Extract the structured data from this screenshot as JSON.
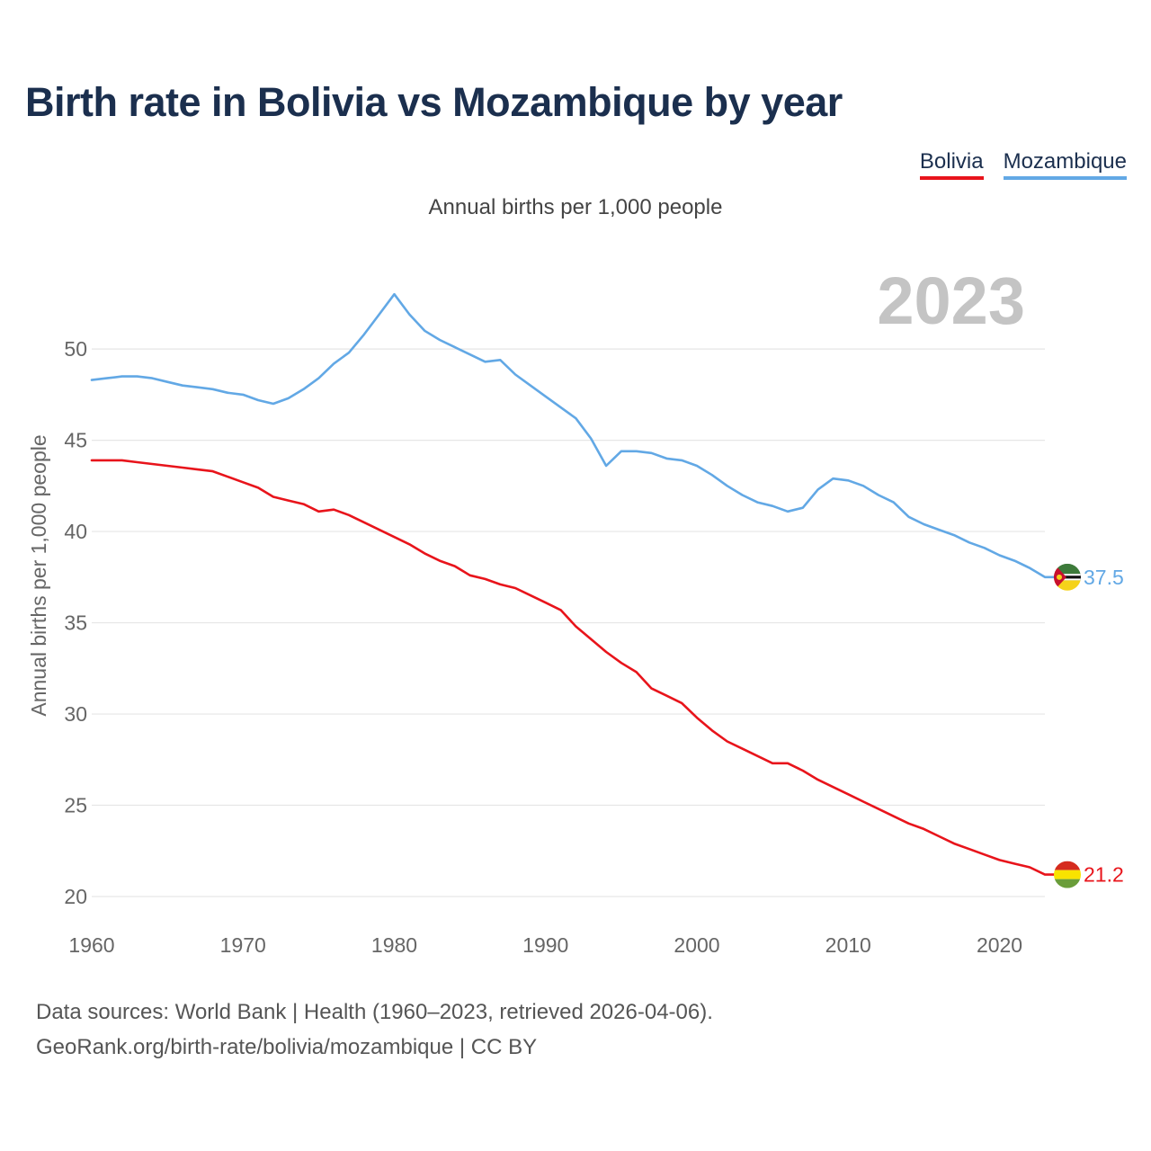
{
  "title": "Birth rate in Bolivia vs Mozambique by year",
  "legend": {
    "bolivia": "Bolivia",
    "mozambique": "Mozambique"
  },
  "subtitle": "Annual births per 1,000 people",
  "year_watermark": "2023",
  "footer": {
    "line1": "Data sources: World Bank | Health (1960–2023, retrieved 2026-04-06).",
    "line2": "GeoRank.org/birth-rate/bolivia/mozambique | CC BY"
  },
  "colors": {
    "bolivia": "#e8141b",
    "mozambique": "#62a8e5",
    "grid": "#e6e6e6",
    "axis_text": "#666666",
    "watermark": "#c4c4c4"
  },
  "chart_data": {
    "type": "line",
    "title": "Birth rate in Bolivia vs Mozambique by year",
    "ylabel": "Annual births per 1,000 people",
    "xlabel": "",
    "xlim": [
      1960,
      2023
    ],
    "ylim": [
      20,
      53.8
    ],
    "x_ticks": [
      1960,
      1970,
      1980,
      1990,
      2000,
      2010,
      2020
    ],
    "y_ticks": [
      20,
      25,
      30,
      35,
      40,
      45,
      50
    ],
    "x": [
      1960,
      1961,
      1962,
      1963,
      1964,
      1965,
      1966,
      1967,
      1968,
      1969,
      1970,
      1971,
      1972,
      1973,
      1974,
      1975,
      1976,
      1977,
      1978,
      1979,
      1980,
      1981,
      1982,
      1983,
      1984,
      1985,
      1986,
      1987,
      1988,
      1989,
      1990,
      1991,
      1992,
      1993,
      1994,
      1995,
      1996,
      1997,
      1998,
      1999,
      2000,
      2001,
      2002,
      2003,
      2004,
      2005,
      2006,
      2007,
      2008,
      2009,
      2010,
      2011,
      2012,
      2013,
      2014,
      2015,
      2016,
      2017,
      2018,
      2019,
      2020,
      2021,
      2022,
      2023
    ],
    "series": [
      {
        "name": "Bolivia",
        "end_label": "21.2",
        "values": [
          43.9,
          43.9,
          43.9,
          43.8,
          43.7,
          43.6,
          43.5,
          43.4,
          43.3,
          43.0,
          42.7,
          42.4,
          41.9,
          41.7,
          41.5,
          41.1,
          41.2,
          40.9,
          40.5,
          40.1,
          39.7,
          39.3,
          38.8,
          38.4,
          38.1,
          37.6,
          37.4,
          37.1,
          36.9,
          36.5,
          36.1,
          35.7,
          34.8,
          34.1,
          33.4,
          32.8,
          32.3,
          31.4,
          31.0,
          30.6,
          29.8,
          29.1,
          28.5,
          28.1,
          27.7,
          27.3,
          27.3,
          26.9,
          26.4,
          26.0,
          25.6,
          25.2,
          24.8,
          24.4,
          24.0,
          23.7,
          23.3,
          22.9,
          22.6,
          22.3,
          22.0,
          21.8,
          21.6,
          21.2
        ]
      },
      {
        "name": "Mozambique",
        "end_label": "37.5",
        "values": [
          48.3,
          48.4,
          48.5,
          48.5,
          48.4,
          48.2,
          48.0,
          47.9,
          47.8,
          47.6,
          47.5,
          47.2,
          47.0,
          47.3,
          47.8,
          48.4,
          49.2,
          49.8,
          50.8,
          51.9,
          53.0,
          51.9,
          51.0,
          50.5,
          50.1,
          49.7,
          49.3,
          49.4,
          48.6,
          48.0,
          47.4,
          46.8,
          46.2,
          45.1,
          43.6,
          44.4,
          44.4,
          44.3,
          44.0,
          43.9,
          43.6,
          43.1,
          42.5,
          42.0,
          41.6,
          41.4,
          41.1,
          41.3,
          42.3,
          42.9,
          42.8,
          42.5,
          42.0,
          41.6,
          40.8,
          40.4,
          40.1,
          39.8,
          39.4,
          39.1,
          38.7,
          38.4,
          38.0,
          37.5
        ]
      }
    ]
  }
}
